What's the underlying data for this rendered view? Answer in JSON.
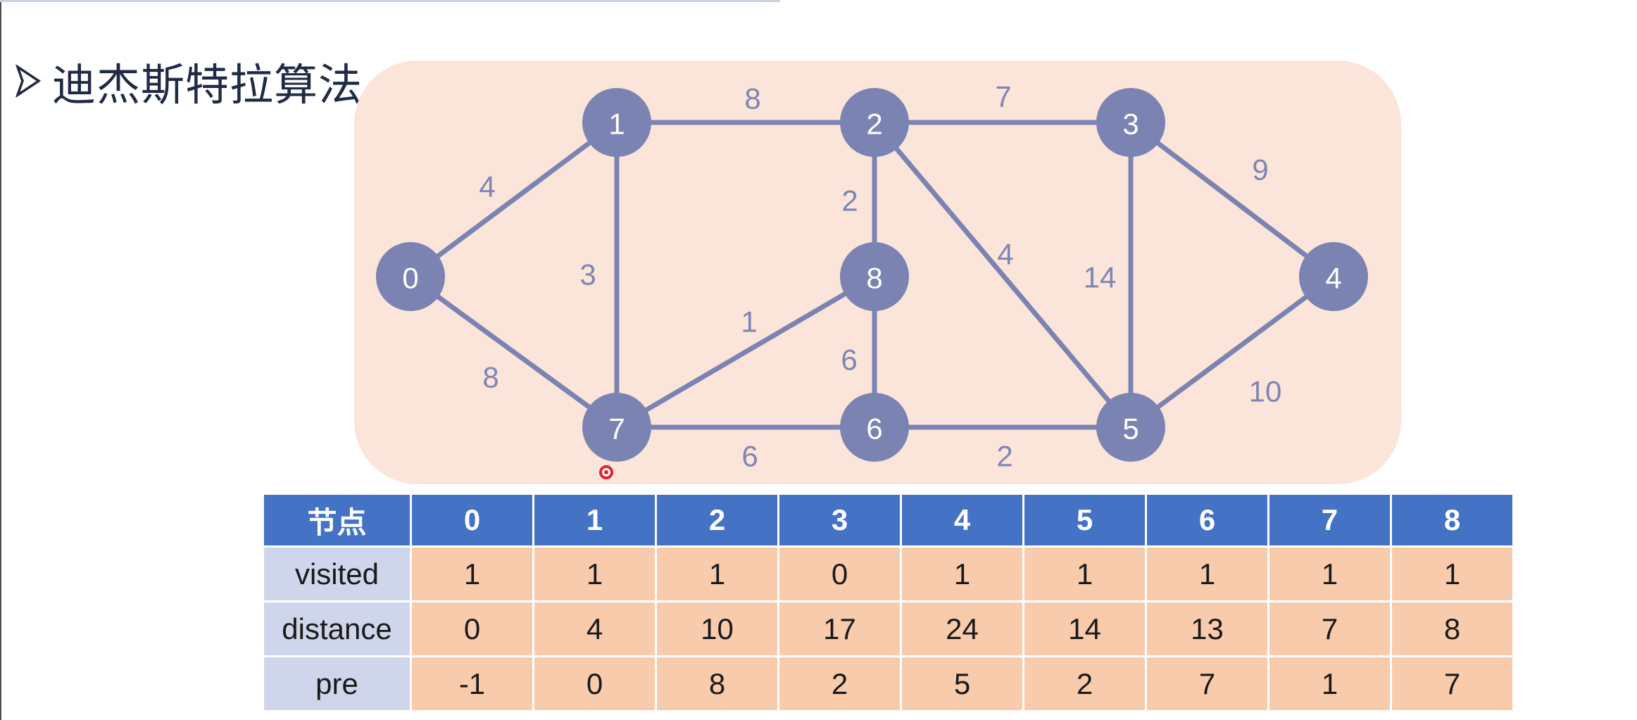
{
  "title": "迪杰斯特拉算法",
  "graph": {
    "nodes": [
      "0",
      "1",
      "2",
      "3",
      "4",
      "5",
      "6",
      "7",
      "8"
    ],
    "edges": [
      {
        "from": "0",
        "to": "1",
        "weight": "4"
      },
      {
        "from": "0",
        "to": "7",
        "weight": "8"
      },
      {
        "from": "1",
        "to": "2",
        "weight": "8"
      },
      {
        "from": "1",
        "to": "7",
        "weight": "3"
      },
      {
        "from": "2",
        "to": "3",
        "weight": "7"
      },
      {
        "from": "2",
        "to": "8",
        "weight": "2"
      },
      {
        "from": "2",
        "to": "5",
        "weight": "4"
      },
      {
        "from": "3",
        "to": "4",
        "weight": "9"
      },
      {
        "from": "3",
        "to": "5",
        "weight": "14"
      },
      {
        "from": "4",
        "to": "5",
        "weight": "10"
      },
      {
        "from": "5",
        "to": "6",
        "weight": "2"
      },
      {
        "from": "6",
        "to": "7",
        "weight": "6"
      },
      {
        "from": "6",
        "to": "8",
        "weight": "6"
      },
      {
        "from": "7",
        "to": "8",
        "weight": "1"
      }
    ]
  },
  "table": {
    "corner": "节点",
    "columns": [
      "0",
      "1",
      "2",
      "3",
      "4",
      "5",
      "6",
      "7",
      "8"
    ],
    "rows": [
      {
        "label": "visited",
        "values": [
          "1",
          "1",
          "1",
          "0",
          "1",
          "1",
          "1",
          "1",
          "1"
        ]
      },
      {
        "label": "distance",
        "values": [
          "0",
          "4",
          "10",
          "17",
          "24",
          "14",
          "13",
          "7",
          "8"
        ]
      },
      {
        "label": "pre",
        "values": [
          "-1",
          "0",
          "8",
          "2",
          "5",
          "2",
          "7",
          "1",
          "7"
        ]
      }
    ]
  },
  "colors": {
    "node_fill": "#7b83b3",
    "edge": "#7b83b3",
    "weight_text": "#7e86b4",
    "panel_bg": "#fbe5da",
    "header_bg": "#4472c4",
    "row_label_bg": "#cfd5ea",
    "cell_bg": "#f8cbad"
  }
}
